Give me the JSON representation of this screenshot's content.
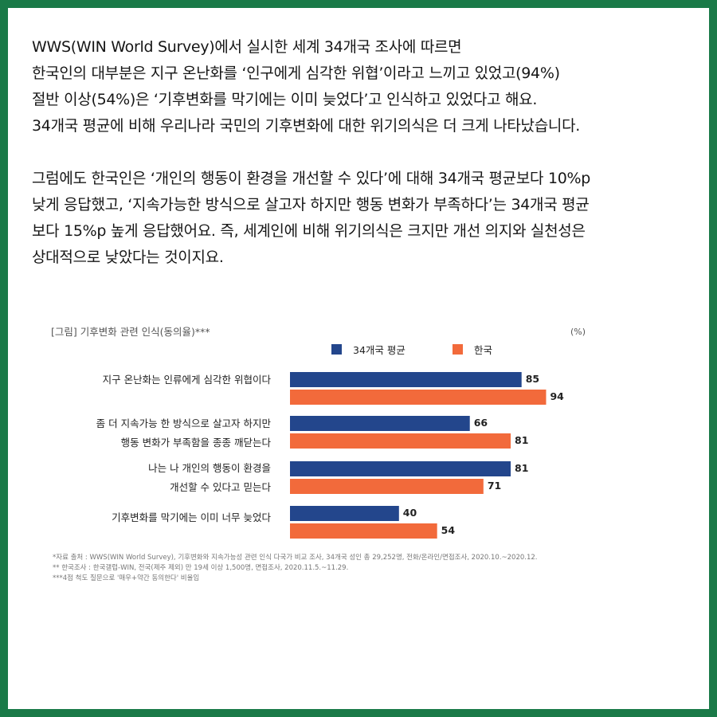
{
  "intro": {
    "paragraph1": [
      "WWS(WIN World Survey)에서 실시한 세계 34개국 조사에 따르면",
      "한국인의 대부분은 지구 온난화를 ‘인구에게 심각한 위협’이라고 느끼고 있었고(94%)",
      "절반 이상(54%)은 ‘기후변화를 막기에는 이미 늦었다’고 인식하고 있었다고 해요.",
      "34개국 평균에 비해 우리나라 국민의 기후변화에 대한 위기의식은 더 크게 나타났습니다."
    ],
    "paragraph2": [
      "그럼에도 한국인은 ‘개인의 행동이 환경을 개선할 수 있다’에 대해 34개국 평균보다 10%p",
      "낮게 응답했고, ‘지속가능한 방식으로 살고자 하지만 행동 변화가 부족하다’는 34개국 평균",
      "보다 15%p 높게 응답했어요. 즉, 세계인에 비해 위기의식은 크지만 개선 의지와 실천성은",
      "상대적으로 낮았다는 것이지요."
    ]
  },
  "chart_data": {
    "type": "bar",
    "orientation": "horizontal",
    "title": "[그림] 기후변화 관련 인식(동의율)***",
    "unit": "(%)",
    "xlim": [
      0,
      100
    ],
    "grid": false,
    "legend_position": "top",
    "categories": [
      [
        "지구 온난화는 인류에게 심각한 위협이다"
      ],
      [
        "좀 더  지속가능 한 방식으로 살고자 하지만",
        "행동 변화가 부족함을 종종  깨닫는다"
      ],
      [
        "나는 나 개인의 행동이 환경을",
        "개선할 수 있다고 믿는다"
      ],
      [
        "기후변화를 막기에는 이미 너무 늦었다"
      ]
    ],
    "series": [
      {
        "name": "34개국 평균",
        "color": "#23468c",
        "values": [
          85,
          66,
          81,
          40
        ]
      },
      {
        "name": "한국",
        "color": "#f26a3b",
        "values": [
          94,
          81,
          71,
          54
        ]
      }
    ],
    "notes": [
      "*자료 출처 : WWS(WIN World Survey), 기후변화와 지속가능성 관련 인식 다국가 비교 조사, 34개국 성인 총 29,252명, 전화/온라인/면접조사, 2020.10.~2020.12.",
      "** 한국조사 : 한국갤럽-WIN, 전국(제주 제외) 만 19세 이상 1,500명, 면접조사, 2020.11.5.~11.29.",
      "***4점 척도 질문으로 '매우+약간 동의한다' 비율임"
    ]
  }
}
